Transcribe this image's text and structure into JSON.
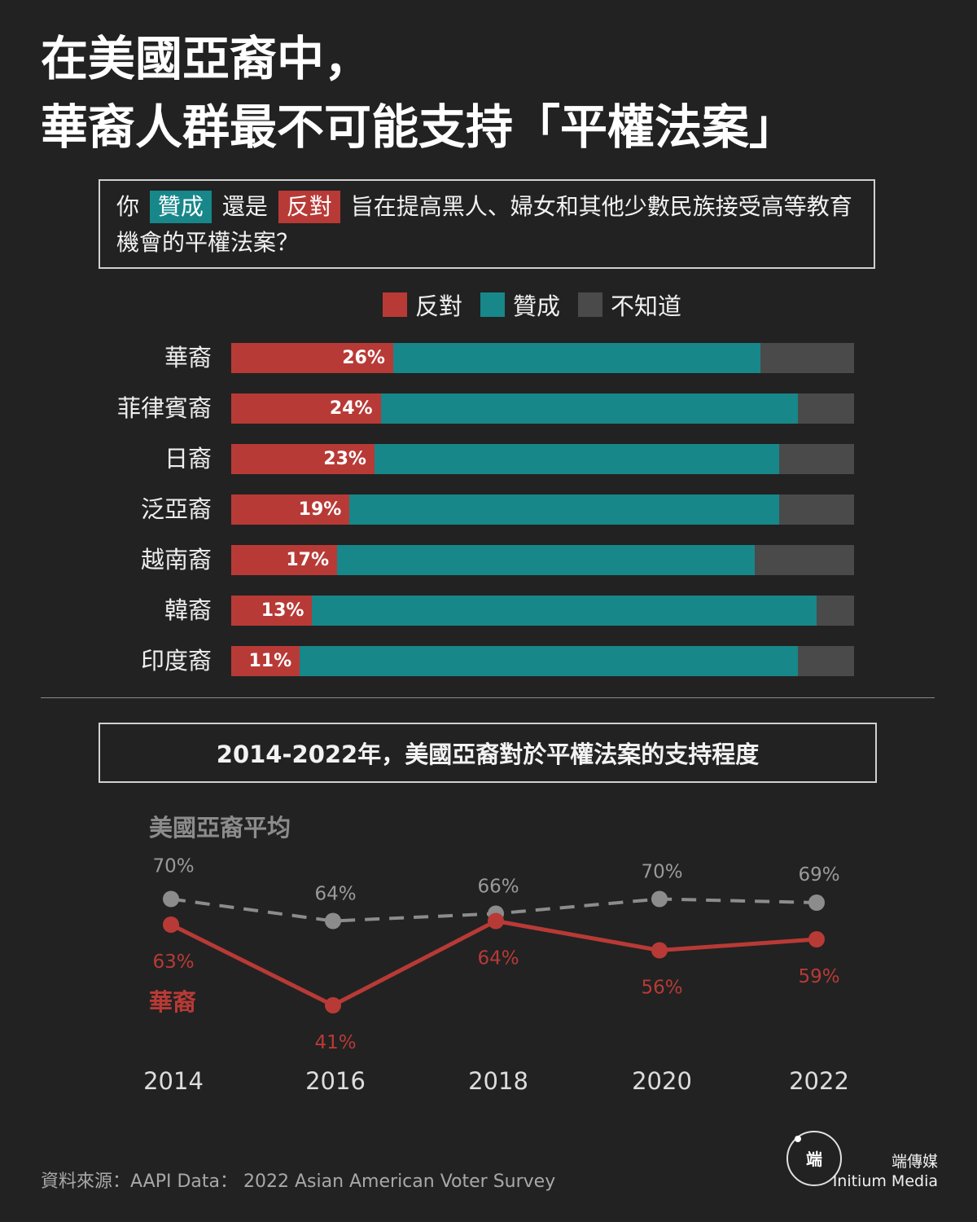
{
  "title": {
    "line1": "在美國亞裔中，",
    "line2": "華裔人群最不可能支持「平權法案」"
  },
  "question": {
    "pre": "你",
    "support_chip": "贊成",
    "mid": "還是",
    "oppose_chip": "反對",
    "post": "旨在提高黑人、婦女和其他少數民族接受高等教育機會的平權法案？"
  },
  "colors": {
    "oppose": "#b83a36",
    "support": "#17878a",
    "dontknow": "#4a4a4a",
    "average_line": "#8c8c8c",
    "chinese_line": "#b83a36"
  },
  "chart_data": [
    {
      "type": "bar",
      "orientation": "horizontal",
      "stacked": true,
      "legend": [
        "反對",
        "贊成",
        "不知道"
      ],
      "categories": [
        "華裔",
        "菲律賓裔",
        "日裔",
        "泛亞裔",
        "越南裔",
        "韓裔",
        "印度裔"
      ],
      "series": [
        {
          "name": "反對",
          "values": [
            26,
            24,
            23,
            19,
            17,
            13,
            11
          ]
        },
        {
          "name": "贊成",
          "values": [
            59,
            67,
            65,
            69,
            67,
            81,
            80
          ]
        },
        {
          "name": "不知道",
          "values": [
            15,
            9,
            12,
            12,
            16,
            6,
            9
          ]
        }
      ],
      "data_labels": [
        "26%",
        "24%",
        "23%",
        "19%",
        "17%",
        "13%",
        "11%"
      ]
    },
    {
      "type": "line",
      "title": "2014-2022年，美國亞裔對於平權法案的支持程度",
      "x": [
        "2014",
        "2016",
        "2018",
        "2020",
        "2022"
      ],
      "series": [
        {
          "name": "美國亞裔平均",
          "values": [
            70,
            64,
            66,
            70,
            69
          ],
          "labels": [
            "70%",
            "64%",
            "66%",
            "70%",
            "69%"
          ],
          "style": "dashed"
        },
        {
          "name": "華裔",
          "values": [
            63,
            41,
            64,
            56,
            59
          ],
          "labels": [
            "63%",
            "41%",
            "64%",
            "56%",
            "59%"
          ],
          "style": "solid"
        }
      ]
    }
  ],
  "source": "資料來源：AAPI Data： 2022 Asian American Voter Survey",
  "brand": {
    "name_zh": "端傳媒",
    "name_en": "Initium Media",
    "logo_glyph": "端"
  }
}
